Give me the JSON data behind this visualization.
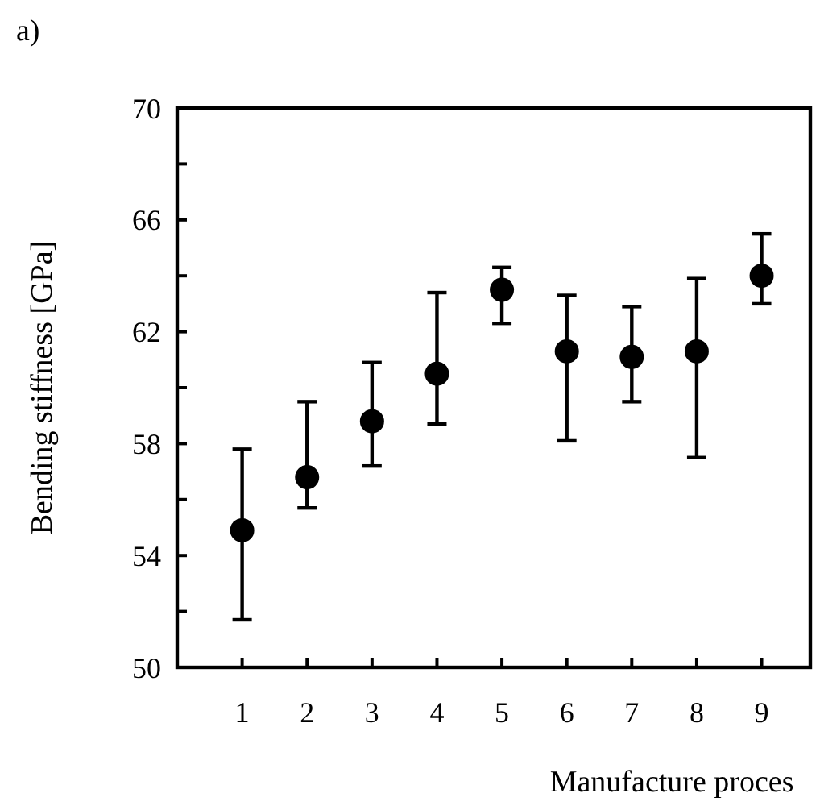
{
  "chart_data": {
    "type": "scatter",
    "title": "a)",
    "xlabel": "Manufacture proces",
    "ylabel": "Bending stiffness [GPa]",
    "categories": [
      "1",
      "2",
      "3",
      "4",
      "5",
      "6",
      "7",
      "8",
      "9"
    ],
    "values": [
      54.9,
      56.8,
      58.8,
      60.5,
      63.5,
      61.3,
      61.1,
      61.3,
      64.0
    ],
    "errors": [
      [
        51.7,
        57.8
      ],
      [
        55.7,
        59.5
      ],
      [
        57.2,
        60.9
      ],
      [
        58.7,
        63.4
      ],
      [
        62.3,
        64.3
      ],
      [
        58.1,
        63.3
      ],
      [
        59.5,
        62.9
      ],
      [
        57.5,
        63.9
      ],
      [
        63.0,
        65.5
      ]
    ],
    "color": "#000000",
    "marker": "circle",
    "ylim": [
      50,
      70
    ],
    "yticks": [
      50,
      {
        "value": 52,
        "label": null
      },
      54,
      {
        "value": 56,
        "label": null
      },
      58,
      {
        "value": 60,
        "label": null
      },
      62,
      {
        "value": 64,
        "label": null
      },
      66,
      {
        "value": 68,
        "label": null
      },
      70
    ],
    "grid": false
  }
}
